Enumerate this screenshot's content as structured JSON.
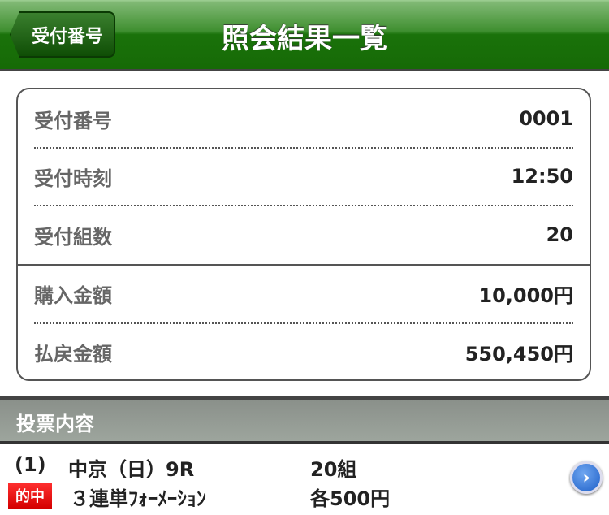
{
  "header": {
    "back_label": "受付番号",
    "title": "照会結果一覧"
  },
  "summary": [
    {
      "label": "受付番号",
      "value": "0001"
    },
    {
      "label": "受付時刻",
      "value": "12:50"
    },
    {
      "label": "受付組数",
      "value": "20"
    },
    {
      "label": "購入金額",
      "value": "10,000円"
    },
    {
      "label": "払戻金額",
      "value": "550,450円"
    }
  ],
  "section": {
    "title": "投票内容"
  },
  "bets": [
    {
      "index": "(1)",
      "race": "中京（日）9R",
      "combos": "20組",
      "badge": "的中",
      "type": "３連単ﾌｫｰﾒｰｼｮﾝ",
      "amount": "各500円",
      "icon": "chevron-right-icon"
    }
  ]
}
